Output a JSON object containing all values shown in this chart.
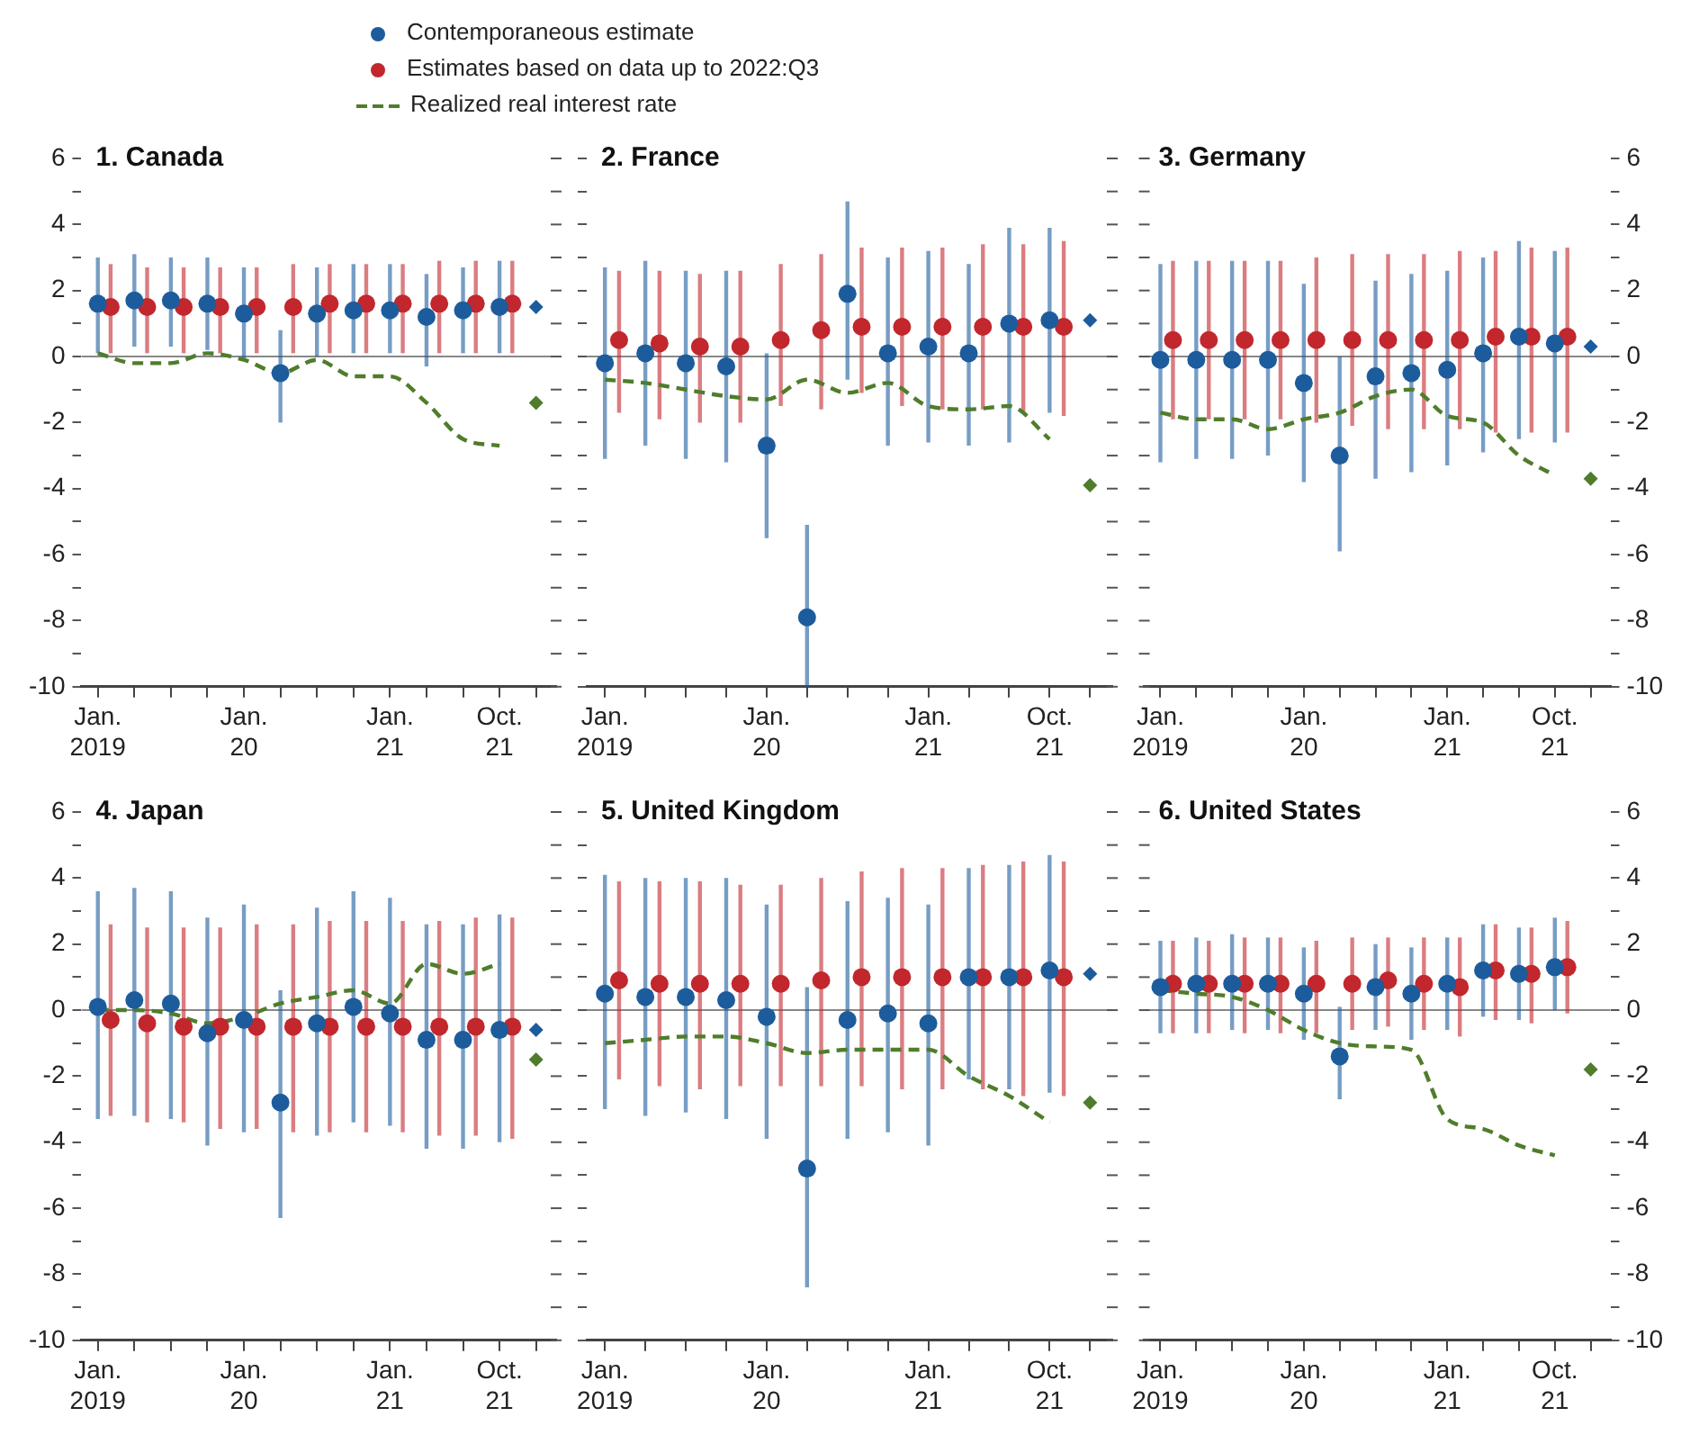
{
  "chart_data": [
    {
      "type": "scatter",
      "title": "1. Canada",
      "legend": "top right",
      "marker": "circle",
      "categories": [
        "Jan. 2019",
        null,
        null,
        null,
        "Jan. 20",
        null,
        null,
        null,
        "Jan. 21",
        null,
        null,
        "Oct. 21",
        null
      ],
      "ylim": [
        -10,
        6
      ],
      "yticks": [
        -10,
        {
          "value": -9,
          "label": null
        },
        -8,
        {
          "value": -7,
          "label": null
        },
        -6,
        {
          "value": -5,
          "label": null
        },
        -4,
        {
          "value": -3,
          "label": null
        },
        -2,
        {
          "value": -1,
          "label": null
        },
        0,
        {
          "value": 1,
          "label": null
        },
        2,
        {
          "value": 3,
          "label": null
        },
        4,
        {
          "value": 5,
          "label": null
        },
        6
      ],
      "ref_lines": [
        {
          "axis": "y",
          "value": 0
        }
      ],
      "series": [
        {
          "name": "Contemporaneous estimate",
          "color": "#1d5c9c",
          "values": [
            1.6,
            1.7,
            1.7,
            1.6,
            1.3,
            -0.5,
            1.3,
            1.4,
            1.4,
            1.2,
            1.4,
            1.5,
            null
          ],
          "errors": [
            [
              0.1,
              3.0
            ],
            [
              0.3,
              3.1
            ],
            [
              0.3,
              3.0
            ],
            [
              0.2,
              3.0
            ],
            [
              -0.1,
              2.7
            ],
            [
              -2.0,
              0.8
            ],
            [
              0,
              2.7
            ],
            [
              0.1,
              2.8
            ],
            [
              0.1,
              2.8
            ],
            [
              -0.3,
              2.5
            ],
            [
              0.1,
              2.7
            ],
            [
              0.1,
              2.9
            ],
            null
          ]
        },
        {
          "name": "Estimates based on data up to 2022:Q3",
          "color": "#c1272d",
          "values": [
            1.5,
            1.5,
            1.5,
            1.5,
            1.5,
            1.5,
            1.6,
            1.6,
            1.6,
            1.6,
            1.6,
            1.6,
            null
          ],
          "errors": [
            [
              0.1,
              2.8
            ],
            [
              0.1,
              2.7
            ],
            [
              0.1,
              2.7
            ],
            [
              0.1,
              2.7
            ],
            [
              0.1,
              2.7
            ],
            [
              0.1,
              2.8
            ],
            [
              0.1,
              2.8
            ],
            [
              0.1,
              2.8
            ],
            [
              0.1,
              2.8
            ],
            [
              0.1,
              2.9
            ],
            [
              0.1,
              2.9
            ],
            [
              0.1,
              2.9
            ],
            null
          ]
        },
        {
          "name": "Realized real interest rate",
          "type": "line",
          "color": "#4f7d2b",
          "marker": "none",
          "line_style": "dashed",
          "values": [
            0.1,
            -0.2,
            -0.2,
            0.1,
            -0.1,
            -0.5,
            -0.1,
            -0.6,
            -0.6,
            -1.4,
            -2.5,
            -2.7,
            null
          ]
        },
        {
          "color": "#1d5c9c",
          "marker": "diamond",
          "values": [
            null,
            null,
            null,
            null,
            null,
            null,
            null,
            null,
            null,
            null,
            null,
            null,
            1.5
          ]
        },
        {
          "color": "#4f7d2b",
          "marker": "diamond",
          "values": [
            null,
            null,
            null,
            null,
            null,
            null,
            null,
            null,
            null,
            null,
            null,
            null,
            -1.4
          ]
        }
      ]
    },
    {
      "type": "scatter",
      "title": "2. France",
      "marker": "circle",
      "tick_labels": "x",
      "categories": [
        "Jan. 2019",
        null,
        null,
        null,
        "Jan. 20",
        null,
        null,
        null,
        "Jan. 21",
        null,
        null,
        "Oct. 21",
        null
      ],
      "ylim": [
        -10,
        6
      ],
      "yticks": [
        {
          "value": -10,
          "label": null
        },
        {
          "value": -9,
          "label": null
        },
        {
          "value": -8,
          "label": null
        },
        {
          "value": -7,
          "label": null
        },
        {
          "value": -6,
          "label": null
        },
        {
          "value": -5,
          "label": null
        },
        {
          "value": -4,
          "label": null
        },
        {
          "value": -3,
          "label": null
        },
        {
          "value": -2,
          "label": null
        },
        {
          "value": -1,
          "label": null
        },
        {
          "value": 0,
          "label": null
        },
        {
          "value": 1,
          "label": null
        },
        {
          "value": 2,
          "label": null
        },
        {
          "value": 3,
          "label": null
        },
        {
          "value": 4,
          "label": null
        },
        {
          "value": 5,
          "label": null
        },
        {
          "value": 6,
          "label": null
        }
      ],
      "ref_lines": [
        {
          "axis": "y",
          "value": 0
        }
      ],
      "series": [
        {
          "color": "#1d5c9c",
          "values": [
            -0.2,
            0.1,
            -0.2,
            -0.3,
            -2.7,
            -7.9,
            1.9,
            0.1,
            0.3,
            0.1,
            1.0,
            1.1,
            null
          ],
          "errors": [
            [
              -3.1,
              2.7
            ],
            [
              -2.7,
              2.9
            ],
            [
              -3.1,
              2.6
            ],
            [
              -3.2,
              2.6
            ],
            [
              -5.5,
              0.1
            ],
            [
              -10,
              -5.1
            ],
            [
              -0.7,
              4.7
            ],
            [
              -2.7,
              3.0
            ],
            [
              -2.6,
              3.2
            ],
            [
              -2.7,
              2.8
            ],
            [
              -2.6,
              3.9
            ],
            [
              -1.7,
              3.9
            ],
            null
          ]
        },
        {
          "color": "#c1272d",
          "values": [
            0.5,
            0.4,
            0.3,
            0.3,
            0.5,
            0.8,
            0.9,
            0.9,
            0.9,
            0.9,
            0.9,
            0.9,
            null
          ],
          "errors": [
            [
              -1.7,
              2.6
            ],
            [
              -1.9,
              2.6
            ],
            [
              -2.0,
              2.5
            ],
            [
              -2.0,
              2.6
            ],
            [
              -1.5,
              2.8
            ],
            [
              -1.6,
              3.1
            ],
            [
              -1.1,
              3.3
            ],
            [
              -1.5,
              3.3
            ],
            [
              -1.6,
              3.3
            ],
            [
              -1.6,
              3.4
            ],
            [
              -1.7,
              3.4
            ],
            [
              -1.8,
              3.5
            ],
            null
          ]
        },
        {
          "type": "line",
          "color": "#4f7d2b",
          "marker": "none",
          "line_style": "dashed",
          "values": [
            -0.7,
            -0.8,
            -1.0,
            -1.2,
            -1.3,
            -0.7,
            -1.1,
            -0.8,
            -1.5,
            -1.6,
            -1.5,
            -2.5,
            null
          ]
        },
        {
          "color": "#1d5c9c",
          "marker": "diamond",
          "values": [
            null,
            null,
            null,
            null,
            null,
            null,
            null,
            null,
            null,
            null,
            null,
            null,
            1.1
          ]
        },
        {
          "color": "#4f7d2b",
          "marker": "diamond",
          "values": [
            null,
            null,
            null,
            null,
            null,
            null,
            null,
            null,
            null,
            null,
            null,
            null,
            -3.9
          ]
        }
      ]
    },
    {
      "type": "scatter",
      "title": "3. Germany",
      "marker": "circle",
      "categories": [
        "Jan. 2019",
        null,
        null,
        null,
        "Jan. 20",
        null,
        null,
        null,
        "Jan. 21",
        null,
        null,
        "Oct. 21",
        null
      ],
      "y2lim": [
        -10,
        6
      ],
      "y2ticks": [
        -10,
        {
          "value": -9,
          "label": null
        },
        -8,
        {
          "value": -7,
          "label": null
        },
        -6,
        {
          "value": -5,
          "label": null
        },
        -4,
        {
          "value": -3,
          "label": null
        },
        -2,
        {
          "value": -1,
          "label": null
        },
        0,
        {
          "value": 1,
          "label": null
        },
        2,
        {
          "value": 3,
          "label": null
        },
        4,
        {
          "value": 5,
          "label": null
        },
        6
      ],
      "ref_lines": [
        {
          "axis": "y2",
          "value": 0
        }
      ],
      "series": [
        {
          "axis": "y2",
          "color": "#1d5c9c",
          "values": [
            -0.1,
            -0.1,
            -0.1,
            -0.1,
            -0.8,
            -3.0,
            -0.6,
            -0.5,
            -0.4,
            0.1,
            0.6,
            0.4,
            null
          ],
          "errors": [
            [
              -3.2,
              2.8
            ],
            [
              -3.1,
              2.9
            ],
            [
              -3.1,
              2.9
            ],
            [
              -3.0,
              2.9
            ],
            [
              -3.8,
              2.2
            ],
            [
              -5.9,
              0
            ],
            [
              -3.7,
              2.3
            ],
            [
              -3.5,
              2.5
            ],
            [
              -3.3,
              2.6
            ],
            [
              -2.9,
              3.0
            ],
            [
              -2.5,
              3.5
            ],
            [
              -2.6,
              3.2
            ],
            null
          ]
        },
        {
          "axis": "y2",
          "color": "#c1272d",
          "values": [
            0.5,
            0.5,
            0.5,
            0.5,
            0.5,
            0.5,
            0.5,
            0.5,
            0.5,
            0.6,
            0.6,
            0.6,
            null
          ],
          "errors": [
            [
              -1.9,
              2.9
            ],
            [
              -1.9,
              2.9
            ],
            [
              -1.9,
              2.9
            ],
            [
              -1.9,
              2.9
            ],
            [
              -2.0,
              3.0
            ],
            [
              -2.1,
              3.1
            ],
            [
              -2.2,
              3.1
            ],
            [
              -2.2,
              3.1
            ],
            [
              -2.2,
              3.2
            ],
            [
              -2.3,
              3.2
            ],
            [
              -2.3,
              3.3
            ],
            [
              -2.3,
              3.3
            ],
            null
          ]
        },
        {
          "axis": "y2",
          "type": "line",
          "color": "#4f7d2b",
          "marker": "none",
          "line_style": "dashed",
          "values": [
            -1.7,
            -1.9,
            -1.9,
            -2.2,
            -1.9,
            -1.7,
            -1.2,
            -1.0,
            -1.8,
            -2.0,
            -3.0,
            -3.6,
            null
          ]
        },
        {
          "axis": "y2",
          "color": "#1d5c9c",
          "marker": "diamond",
          "values": [
            null,
            null,
            null,
            null,
            null,
            null,
            null,
            null,
            null,
            null,
            null,
            null,
            0.3
          ]
        },
        {
          "axis": "y2",
          "color": "#4f7d2b",
          "marker": "diamond",
          "values": [
            null,
            null,
            null,
            null,
            null,
            null,
            null,
            null,
            null,
            null,
            null,
            null,
            -3.7
          ]
        }
      ]
    },
    {
      "type": "scatter",
      "title": "4. Japan",
      "marker": "circle",
      "categories": [
        "Jan. 2019",
        null,
        null,
        null,
        "Jan. 20",
        null,
        null,
        null,
        "Jan. 21",
        null,
        null,
        "Oct. 21",
        null
      ],
      "ylim": [
        -10,
        6
      ],
      "yticks": [
        -10,
        {
          "value": -9,
          "label": null
        },
        -8,
        {
          "value": -7,
          "label": null
        },
        -6,
        {
          "value": -5,
          "label": null
        },
        -4,
        {
          "value": -3,
          "label": null
        },
        -2,
        {
          "value": -1,
          "label": null
        },
        0,
        {
          "value": 1,
          "label": null
        },
        2,
        {
          "value": 3,
          "label": null
        },
        4,
        {
          "value": 5,
          "label": null
        },
        6
      ],
      "ref_lines": [
        {
          "axis": "y",
          "value": 0
        }
      ],
      "series": [
        {
          "color": "#1d5c9c",
          "values": [
            0.1,
            0.3,
            0.2,
            -0.7,
            -0.3,
            -2.8,
            -0.4,
            0.1,
            -0.1,
            -0.9,
            -0.9,
            -0.6,
            null
          ],
          "errors": [
            [
              -3.3,
              3.6
            ],
            [
              -3.2,
              3.7
            ],
            [
              -3.3,
              3.6
            ],
            [
              -4.1,
              2.8
            ],
            [
              -3.7,
              3.2
            ],
            [
              -6.3,
              0.6
            ],
            [
              -3.8,
              3.1
            ],
            [
              -3.4,
              3.6
            ],
            [
              -3.5,
              3.4
            ],
            [
              -4.2,
              2.6
            ],
            [
              -4.2,
              2.6
            ],
            [
              -4.0,
              2.9
            ],
            null
          ]
        },
        {
          "color": "#c1272d",
          "values": [
            -0.3,
            -0.4,
            -0.5,
            -0.5,
            -0.5,
            -0.5,
            -0.5,
            -0.5,
            -0.5,
            -0.5,
            -0.5,
            -0.5,
            null
          ],
          "errors": [
            [
              -3.2,
              2.6
            ],
            [
              -3.4,
              2.5
            ],
            [
              -3.4,
              2.5
            ],
            [
              -3.6,
              2.5
            ],
            [
              -3.6,
              2.6
            ],
            [
              -3.7,
              2.6
            ],
            [
              -3.7,
              2.7
            ],
            [
              -3.7,
              2.7
            ],
            [
              -3.7,
              2.7
            ],
            [
              -3.8,
              2.7
            ],
            [
              -3.8,
              2.8
            ],
            [
              -3.9,
              2.8
            ],
            null
          ]
        },
        {
          "type": "line",
          "color": "#4f7d2b",
          "marker": "none",
          "line_style": "dashed",
          "values": [
            0,
            0,
            -0.1,
            -0.4,
            -0.2,
            0.2,
            0.4,
            0.6,
            0.2,
            1.4,
            1.1,
            1.4,
            null
          ]
        },
        {
          "color": "#1d5c9c",
          "marker": "diamond",
          "values": [
            null,
            null,
            null,
            null,
            null,
            null,
            null,
            null,
            null,
            null,
            null,
            null,
            -0.6
          ]
        },
        {
          "color": "#4f7d2b",
          "marker": "diamond",
          "values": [
            null,
            null,
            null,
            null,
            null,
            null,
            null,
            null,
            null,
            null,
            null,
            null,
            -1.5
          ]
        }
      ]
    },
    {
      "type": "scatter",
      "title": "5. United Kingdom",
      "marker": "circle",
      "tick_labels": "x",
      "categories": [
        "Jan. 2019",
        null,
        null,
        null,
        "Jan. 20",
        null,
        null,
        null,
        "Jan. 21",
        null,
        null,
        "Oct. 21",
        null
      ],
      "ylim": [
        -10,
        6
      ],
      "yticks": [
        {
          "value": -10,
          "label": null
        },
        {
          "value": -9,
          "label": null
        },
        {
          "value": -8,
          "label": null
        },
        {
          "value": -7,
          "label": null
        },
        {
          "value": -6,
          "label": null
        },
        {
          "value": -5,
          "label": null
        },
        {
          "value": -4,
          "label": null
        },
        {
          "value": -3,
          "label": null
        },
        {
          "value": -2,
          "label": null
        },
        {
          "value": -1,
          "label": null
        },
        {
          "value": 0,
          "label": null
        },
        {
          "value": 1,
          "label": null
        },
        {
          "value": 2,
          "label": null
        },
        {
          "value": 3,
          "label": null
        },
        {
          "value": 4,
          "label": null
        },
        {
          "value": 5,
          "label": null
        },
        {
          "value": 6,
          "label": null
        }
      ],
      "ref_lines": [
        {
          "axis": "y",
          "value": 0
        }
      ],
      "series": [
        {
          "color": "#1d5c9c",
          "values": [
            0.5,
            0.4,
            0.4,
            0.3,
            -0.2,
            -4.8,
            -0.3,
            -0.1,
            -0.4,
            1.0,
            1.0,
            1.2,
            null
          ],
          "errors": [
            [
              -3.0,
              4.1
            ],
            [
              -3.2,
              4.0
            ],
            [
              -3.1,
              4.0
            ],
            [
              -3.3,
              4.0
            ],
            [
              -3.9,
              3.2
            ],
            [
              -8.4,
              0.7
            ],
            [
              -3.9,
              3.3
            ],
            [
              -3.7,
              3.4
            ],
            [
              -4.1,
              3.2
            ],
            [
              -2.1,
              4.3
            ],
            [
              -2.4,
              4.4
            ],
            [
              -2.5,
              4.7
            ],
            null
          ]
        },
        {
          "color": "#c1272d",
          "values": [
            0.9,
            0.8,
            0.8,
            0.8,
            0.8,
            0.9,
            1.0,
            1.0,
            1.0,
            1.0,
            1.0,
            1.0,
            null
          ],
          "errors": [
            [
              -2.1,
              3.9
            ],
            [
              -2.3,
              3.9
            ],
            [
              -2.4,
              3.9
            ],
            [
              -2.3,
              3.8
            ],
            [
              -2.3,
              3.8
            ],
            [
              -2.3,
              4.0
            ],
            [
              -2.3,
              4.2
            ],
            [
              -2.4,
              4.3
            ],
            [
              -2.4,
              4.3
            ],
            [
              -2.4,
              4.4
            ],
            [
              -2.6,
              4.5
            ],
            [
              -2.6,
              4.5
            ],
            null
          ]
        },
        {
          "type": "line",
          "color": "#4f7d2b",
          "marker": "none",
          "line_style": "dashed",
          "values": [
            -1.0,
            -0.9,
            -0.8,
            -0.8,
            -1.0,
            -1.3,
            -1.2,
            -1.2,
            -1.2,
            -2.0,
            -2.6,
            -3.4,
            null
          ]
        },
        {
          "color": "#1d5c9c",
          "marker": "diamond",
          "values": [
            null,
            null,
            null,
            null,
            null,
            null,
            null,
            null,
            null,
            null,
            null,
            null,
            1.1
          ]
        },
        {
          "color": "#4f7d2b",
          "marker": "diamond",
          "values": [
            null,
            null,
            null,
            null,
            null,
            null,
            null,
            null,
            null,
            null,
            null,
            null,
            -2.8
          ]
        }
      ]
    },
    {
      "type": "scatter",
      "title": "6. United States",
      "marker": "circle",
      "categories": [
        "Jan. 2019",
        null,
        null,
        null,
        "Jan. 20",
        null,
        null,
        null,
        "Jan. 21",
        null,
        null,
        "Oct. 21",
        null
      ],
      "y2lim": [
        -10,
        6
      ],
      "y2ticks": [
        -10,
        {
          "value": -9,
          "label": null
        },
        -8,
        {
          "value": -7,
          "label": null
        },
        -6,
        {
          "value": -5,
          "label": null
        },
        -4,
        {
          "value": -3,
          "label": null
        },
        -2,
        {
          "value": -1,
          "label": null
        },
        0,
        {
          "value": 1,
          "label": null
        },
        2,
        {
          "value": 3,
          "label": null
        },
        4,
        {
          "value": 5,
          "label": null
        },
        6
      ],
      "ref_lines": [
        {
          "axis": "y2",
          "value": 0
        }
      ],
      "series": [
        {
          "axis": "y2",
          "color": "#1d5c9c",
          "values": [
            0.7,
            0.8,
            0.8,
            0.8,
            0.5,
            -1.4,
            0.7,
            0.5,
            0.8,
            1.2,
            1.1,
            1.3,
            null
          ],
          "errors": [
            [
              -0.7,
              2.1
            ],
            [
              -0.7,
              2.2
            ],
            [
              -0.6,
              2.3
            ],
            [
              -0.6,
              2.2
            ],
            [
              -0.9,
              1.9
            ],
            [
              -2.7,
              0.1
            ],
            [
              -0.6,
              2.0
            ],
            [
              -0.9,
              1.9
            ],
            [
              -0.6,
              2.2
            ],
            [
              -0.2,
              2.6
            ],
            [
              -0.3,
              2.5
            ],
            [
              0,
              2.8
            ],
            null
          ]
        },
        {
          "axis": "y2",
          "color": "#c1272d",
          "values": [
            0.8,
            0.8,
            0.8,
            0.8,
            0.8,
            0.8,
            0.9,
            0.8,
            0.7,
            1.2,
            1.1,
            1.3,
            null
          ],
          "errors": [
            [
              -0.7,
              2.1
            ],
            [
              -0.7,
              2.1
            ],
            [
              -0.7,
              2.2
            ],
            [
              -0.7,
              2.2
            ],
            [
              -0.7,
              2.1
            ],
            [
              -0.6,
              2.2
            ],
            [
              -0.5,
              2.2
            ],
            [
              -0.6,
              2.2
            ],
            [
              -0.8,
              2.2
            ],
            [
              -0.3,
              2.6
            ],
            [
              -0.4,
              2.5
            ],
            [
              -0.1,
              2.7
            ],
            null
          ]
        },
        {
          "axis": "y2",
          "type": "line",
          "color": "#4f7d2b",
          "marker": "none",
          "line_style": "dashed",
          "values": [
            0.6,
            0.5,
            0.4,
            0,
            -0.6,
            -1.0,
            -1.1,
            -1.2,
            -3.3,
            -3.6,
            -4.1,
            -4.4,
            null
          ]
        },
        {
          "axis": "y2",
          "color": "#4f7d2b",
          "marker": "diamond",
          "values": [
            null,
            null,
            null,
            null,
            null,
            null,
            null,
            null,
            null,
            null,
            null,
            null,
            -1.8
          ]
        }
      ]
    }
  ]
}
